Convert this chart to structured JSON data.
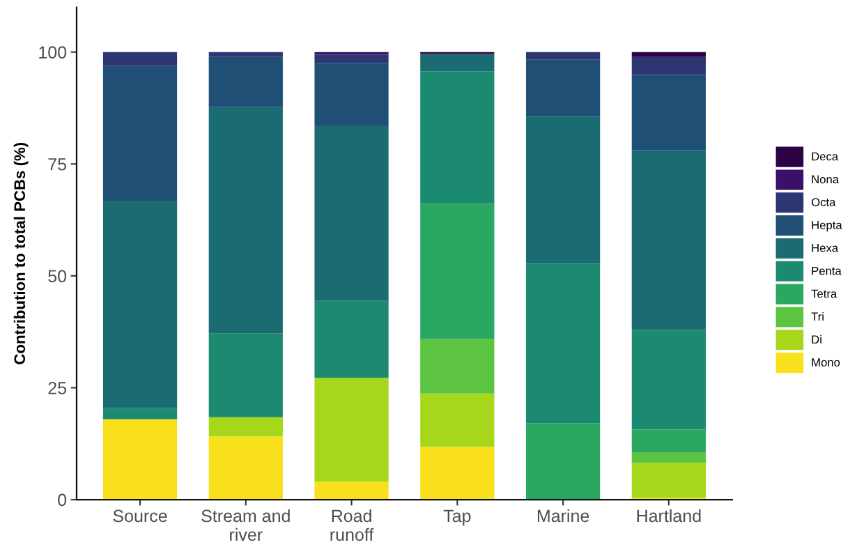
{
  "chart_data": {
    "type": "bar",
    "stacked": true,
    "ylabel": "Contribution to total PCBs (%)",
    "categories": [
      "Source",
      "Stream and\nriver",
      "Road\nrunoff",
      "Tap",
      "Marine",
      "Hartland"
    ],
    "ylim": [
      0,
      110
    ],
    "yticks": [
      0,
      25,
      50,
      75,
      100
    ],
    "legend": "right",
    "series": [
      {
        "name": "Mono",
        "color": "#f8e01d",
        "values": [
          18.0,
          14.1,
          4.0,
          11.8,
          null,
          0.4
        ]
      },
      {
        "name": "Di",
        "color": "#a6d71a",
        "values": [
          null,
          4.3,
          23.2,
          11.9,
          null,
          7.8
        ]
      },
      {
        "name": "Tri",
        "color": "#5cc440",
        "values": [
          null,
          null,
          null,
          12.2,
          null,
          2.4
        ]
      },
      {
        "name": "Tetra",
        "color": "#2aa862",
        "values": [
          null,
          null,
          null,
          30.2,
          17.1,
          5.1
        ]
      },
      {
        "name": "Penta",
        "color": "#1b8a70",
        "values": [
          2.5,
          18.7,
          17.2,
          29.6,
          35.6,
          22.2
        ]
      },
      {
        "name": "Hexa",
        "color": "#1b6b73",
        "values": [
          46.3,
          50.6,
          39.2,
          3.9,
          32.9,
          40.2
        ]
      },
      {
        "name": "Hepta",
        "color": "#1f4f75",
        "values": [
          30.1,
          11.3,
          14.0,
          null,
          12.7,
          16.8
        ]
      },
      {
        "name": "Octa",
        "color": "#2d3572",
        "values": [
          3.1,
          1.0,
          1.8,
          null,
          1.7,
          4.0
        ]
      },
      {
        "name": "Nona",
        "color": "#3a1068",
        "values": [
          null,
          null,
          0.6,
          null,
          null,
          null
        ]
      },
      {
        "name": "Deca",
        "color": "#2e0346",
        "values": [
          null,
          null,
          null,
          0.4,
          null,
          1.1
        ]
      }
    ]
  }
}
